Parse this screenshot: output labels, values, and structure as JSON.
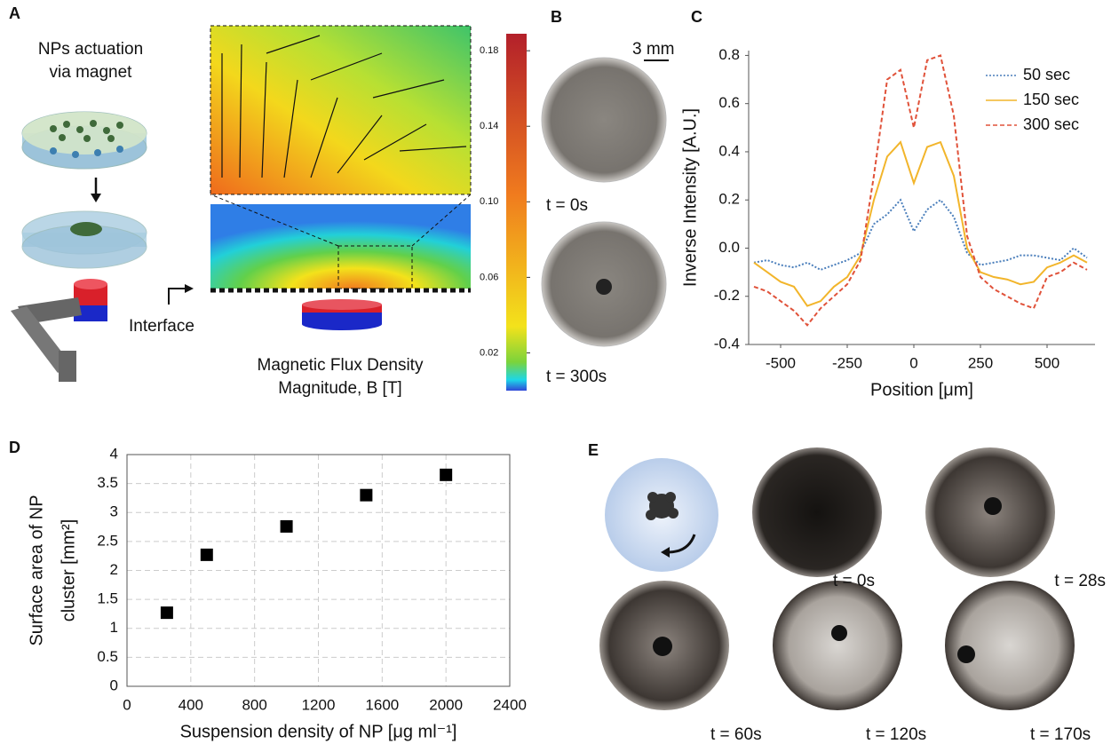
{
  "panels": {
    "A": {
      "letter": "A",
      "caption": [
        "NPs actuation",
        "via magnet"
      ],
      "interface": "Interface",
      "colorbar_title": [
        "Magnetic Flux Density",
        "Magnitude, B [T]"
      ],
      "colorbar": {
        "ylim": [
          0,
          0.189
        ],
        "yticks": [
          0.02,
          0.06,
          {
            "value": 0.1,
            "label": "0.10"
          },
          0.14,
          0.18
        ]
      }
    },
    "B": {
      "letter": "B",
      "scale": "3 mm",
      "labels": [
        "t = 0s",
        "t = 300s"
      ]
    },
    "C": {
      "letter": "C"
    },
    "D": {
      "letter": "D"
    },
    "E": {
      "letter": "E",
      "labels": [
        "t = 0s",
        "t = 28s",
        "t = 60s",
        "t = 120s",
        "t = 170s"
      ]
    }
  },
  "chart_data": [
    {
      "type": "line",
      "x_label": "Position [μm]",
      "y_label": "Inverse Intensity [A.U.]",
      "x": [
        -600,
        -550,
        -500,
        -450,
        -400,
        -350,
        -300,
        -250,
        -200,
        -150,
        -100,
        -50,
        0,
        50,
        100,
        150,
        200,
        250,
        300,
        350,
        400,
        450,
        500,
        550,
        600,
        650
      ],
      "series": [
        {
          "name": "50 sec",
          "color": "#4a7ebb",
          "style": "dotted",
          "values": [
            -0.06,
            -0.05,
            -0.07,
            -0.08,
            -0.06,
            -0.09,
            -0.07,
            -0.05,
            -0.02,
            0.1,
            0.14,
            0.2,
            0.07,
            0.16,
            0.2,
            0.13,
            -0.02,
            -0.07,
            -0.06,
            -0.05,
            -0.03,
            -0.03,
            -0.04,
            -0.05,
            0.0,
            -0.04
          ]
        },
        {
          "name": "150 sec",
          "color": "#f2b52b",
          "style": "solid",
          "values": [
            -0.06,
            -0.1,
            -0.14,
            -0.16,
            -0.24,
            -0.22,
            -0.16,
            -0.12,
            -0.03,
            0.2,
            0.38,
            0.44,
            0.27,
            0.42,
            0.44,
            0.3,
            0.0,
            -0.1,
            -0.12,
            -0.13,
            -0.15,
            -0.14,
            -0.08,
            -0.06,
            -0.03,
            -0.06
          ]
        },
        {
          "name": "300 sec",
          "color": "#e0523a",
          "style": "dashed",
          "values": [
            -0.16,
            -0.18,
            -0.22,
            -0.26,
            -0.32,
            -0.25,
            -0.2,
            -0.15,
            -0.05,
            0.3,
            0.7,
            0.74,
            0.5,
            0.78,
            0.8,
            0.55,
            0.05,
            -0.12,
            -0.17,
            -0.2,
            -0.23,
            -0.25,
            -0.12,
            -0.1,
            -0.06,
            -0.09
          ]
        }
      ],
      "xlim": [
        -620,
        680
      ],
      "xticks": [
        -500,
        -250,
        0,
        250,
        500
      ],
      "ylim": [
        -0.4,
        0.82
      ],
      "yticks": [
        -0.4,
        -0.2,
        {
          "value": 0,
          "label": "0.0"
        },
        0.2,
        0.4,
        0.6,
        0.8
      ],
      "grid": false,
      "legend": "upper right"
    },
    {
      "type": "scatter",
      "x_label": "Suspension density of NP [μg ml⁻¹]",
      "y_label": [
        "Surface area of NP",
        "cluster [mm²]"
      ],
      "x": [
        250,
        500,
        1000,
        1500,
        2000
      ],
      "values": [
        1.27,
        2.27,
        2.76,
        3.3,
        3.65
      ],
      "color": "#000000",
      "marker": "square",
      "xlim": [
        0,
        2400
      ],
      "xticks": [
        0,
        400,
        800,
        1200,
        1600,
        2000,
        2400
      ],
      "ylim": [
        0,
        4
      ],
      "yticks": [
        0,
        0.5,
        1,
        1.5,
        2,
        2.5,
        3,
        3.5,
        4
      ],
      "grid": true
    }
  ]
}
